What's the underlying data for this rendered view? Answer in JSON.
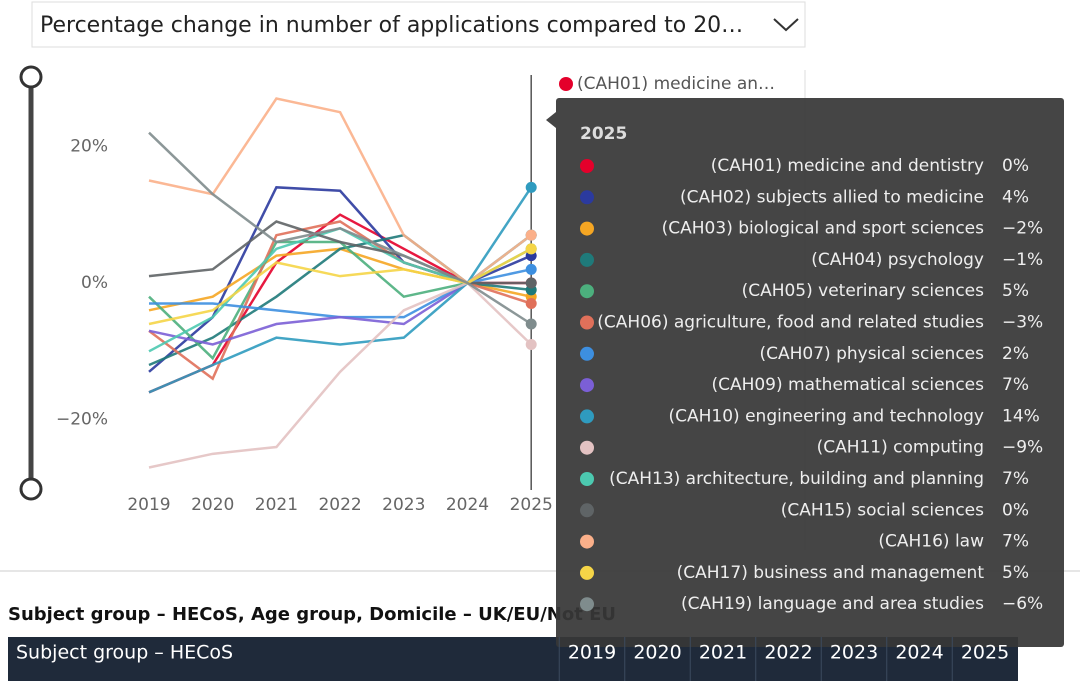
{
  "dropdown": {
    "label": "Percentage change in number of applications compared to 20…"
  },
  "legend_visible": [
    "(CAH01) medicine an…"
  ],
  "chart_data": {
    "type": "line",
    "categories": [
      "2019",
      "2020",
      "2021",
      "2022",
      "2023",
      "2024",
      "2025"
    ],
    "ylim": [
      -30,
      30
    ],
    "yticks": [
      {
        "value": 20,
        "label": "20%"
      },
      {
        "value": 0,
        "label": "0%"
      },
      {
        "value": -20,
        "label": "−20%"
      }
    ],
    "tooltip_title_index": 6,
    "series": [
      {
        "name": "(CAH01) medicine and dentistry",
        "color": "#e4002b",
        "values": [
          -16,
          -12,
          3,
          10,
          5,
          0,
          0
        ],
        "value_labels": [
          null,
          null,
          null,
          null,
          null,
          null,
          "0%"
        ]
      },
      {
        "name": "(CAH02) subjects allied to medicine",
        "color": "#2b3a9e",
        "values": [
          -13,
          -5,
          14,
          13.5,
          3,
          0,
          4
        ],
        "value_labels": [
          null,
          null,
          null,
          null,
          null,
          null,
          "4%"
        ]
      },
      {
        "name": "(CAH03) biological and sport sciences",
        "color": "#f5a623",
        "values": [
          -4,
          -2,
          4,
          5,
          2,
          0,
          -2
        ],
        "value_labels": [
          null,
          null,
          null,
          null,
          null,
          null,
          "−2%"
        ]
      },
      {
        "name": "(CAH04) psychology",
        "color": "#1f7a7a",
        "values": [
          -12,
          -8,
          -2,
          5,
          7,
          0,
          -1
        ],
        "value_labels": [
          null,
          null,
          null,
          null,
          null,
          null,
          "−1%"
        ]
      },
      {
        "name": "(CAH05) veterinary sciences",
        "color": "#4caf7d",
        "values": [
          -2,
          -11,
          6,
          6,
          -2,
          0,
          5
        ],
        "value_labels": [
          null,
          null,
          null,
          null,
          null,
          null,
          "5%"
        ]
      },
      {
        "name": "(CAH06) agriculture, food and related studies",
        "color": "#e0705a",
        "values": [
          -7,
          -14,
          7,
          9,
          3,
          0,
          -3
        ],
        "value_labels": [
          null,
          null,
          null,
          null,
          null,
          null,
          "−3%"
        ]
      },
      {
        "name": "(CAH07) physical sciences",
        "color": "#3d8fe0",
        "values": [
          -3,
          -3,
          -4,
          -5,
          -5,
          0,
          2
        ],
        "value_labels": [
          null,
          null,
          null,
          null,
          null,
          null,
          "2%"
        ]
      },
      {
        "name": "(CAH09) mathematical sciences",
        "color": "#7b5fd6",
        "values": [
          -7,
          -9,
          -6,
          -5,
          -6,
          0,
          7
        ],
        "value_labels": [
          null,
          null,
          null,
          null,
          null,
          null,
          "7%"
        ]
      },
      {
        "name": "(CAH10) engineering and technology",
        "color": "#2f9bbf",
        "values": [
          -16,
          -12,
          -8,
          -9,
          -8,
          0,
          14
        ],
        "value_labels": [
          null,
          null,
          null,
          null,
          null,
          null,
          "14%"
        ]
      },
      {
        "name": "(CAH11) computing",
        "color": "#e3c2c2",
        "values": [
          -27,
          -25,
          -24,
          -13,
          -4,
          0,
          -9
        ],
        "value_labels": [
          null,
          null,
          null,
          null,
          null,
          null,
          "−9%"
        ]
      },
      {
        "name": "(CAH13) architecture, building and planning",
        "color": "#4cc9b0",
        "values": [
          -10,
          -5,
          5,
          8,
          3,
          0,
          7
        ],
        "value_labels": [
          null,
          null,
          null,
          null,
          null,
          null,
          "7%"
        ]
      },
      {
        "name": "(CAH15) social sciences",
        "color": "#5f6466",
        "values": [
          1,
          2,
          9,
          6,
          4,
          0,
          0
        ],
        "value_labels": [
          null,
          null,
          null,
          null,
          null,
          null,
          "0%"
        ]
      },
      {
        "name": "(CAH16) law",
        "color": "#fbb08a",
        "values": [
          15,
          13,
          27,
          25,
          7,
          0,
          7
        ],
        "value_labels": [
          null,
          null,
          null,
          null,
          null,
          null,
          "7%"
        ]
      },
      {
        "name": "(CAH17) business and management",
        "color": "#f5d547",
        "values": [
          -6,
          -4,
          3,
          1,
          2,
          0,
          5
        ],
        "value_labels": [
          null,
          null,
          null,
          null,
          null,
          null,
          "5%"
        ]
      },
      {
        "name": "(CAH19) language and area studies",
        "color": "#7f8c8d",
        "values": [
          22,
          13,
          6,
          8,
          4,
          0,
          -6
        ],
        "value_labels": [
          null,
          null,
          null,
          null,
          null,
          null,
          "−6%"
        ]
      }
    ]
  },
  "table": {
    "caption": "Subject group – HECoS, Age group, Domicile – UK/EU/Not EU",
    "columns": [
      "Subject group – HECoS",
      "2019",
      "2020",
      "2021",
      "2022",
      "2023",
      "2024",
      "2025"
    ]
  }
}
